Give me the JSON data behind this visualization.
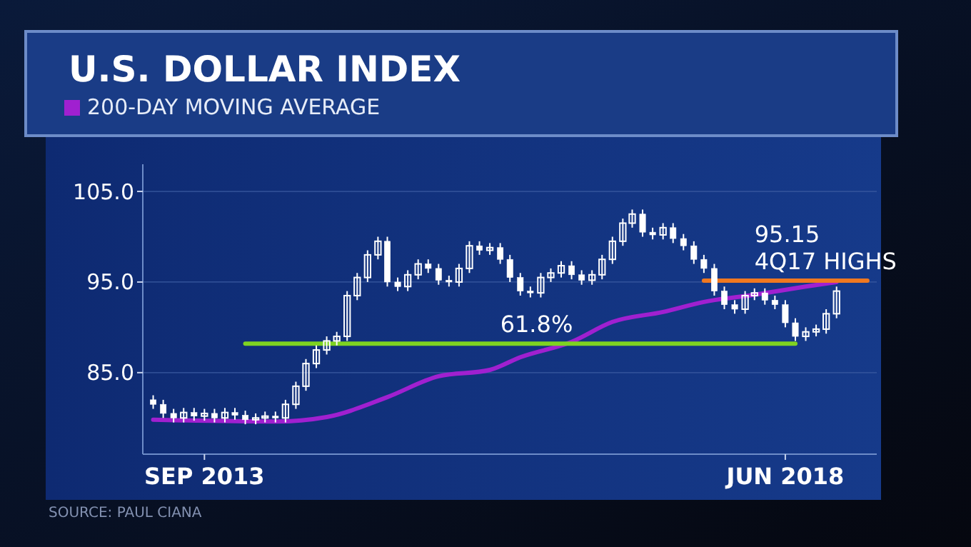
{
  "chart_data": {
    "type": "candlestick",
    "title": "U.S. DOLLAR INDEX",
    "color": "#ffffff",
    "x": [
      "2013-04",
      "2013-05",
      "2013-06",
      "2013-07",
      "2013-08",
      "2013-09",
      "2013-10",
      "2013-11",
      "2013-12",
      "2014-01",
      "2014-02",
      "2014-03",
      "2014-04",
      "2014-05",
      "2014-06",
      "2014-07",
      "2014-08",
      "2014-09",
      "2014-10",
      "2014-11",
      "2014-12",
      "2015-01",
      "2015-02",
      "2015-03",
      "2015-04",
      "2015-05",
      "2015-06",
      "2015-07",
      "2015-08",
      "2015-09",
      "2015-10",
      "2015-11",
      "2015-12",
      "2016-01",
      "2016-02",
      "2016-03",
      "2016-04",
      "2016-05",
      "2016-06",
      "2016-07",
      "2016-08",
      "2016-09",
      "2016-10",
      "2016-11",
      "2016-12",
      "2017-01",
      "2017-02",
      "2017-03",
      "2017-04",
      "2017-05",
      "2017-06",
      "2017-07",
      "2017-08",
      "2017-09",
      "2017-10",
      "2017-11",
      "2017-12",
      "2018-01",
      "2018-02",
      "2018-03",
      "2018-04",
      "2018-05",
      "2018-06",
      "2018-07",
      "2018-08",
      "2018-09",
      "2018-10",
      "2018-11"
    ],
    "ohlc": [
      [
        82.0,
        82.5,
        81.0,
        81.5
      ],
      [
        81.5,
        82.0,
        80.0,
        80.5
      ],
      [
        80.5,
        81.0,
        79.5,
        80.0
      ],
      [
        80.0,
        81.1,
        79.5,
        80.6
      ],
      [
        80.6,
        81.1,
        79.7,
        80.2
      ],
      [
        80.2,
        81.0,
        79.7,
        80.5
      ],
      [
        80.5,
        81.0,
        79.5,
        80.0
      ],
      [
        80.0,
        81.1,
        79.5,
        80.6
      ],
      [
        80.6,
        81.1,
        79.8,
        80.3
      ],
      [
        80.3,
        80.8,
        79.3,
        79.8
      ],
      [
        79.8,
        80.5,
        79.3,
        80.0
      ],
      [
        80.0,
        80.7,
        79.5,
        80.2
      ],
      [
        80.2,
        80.7,
        79.5,
        80.0
      ],
      [
        80.0,
        82.0,
        79.5,
        81.5
      ],
      [
        81.5,
        84.0,
        81.0,
        83.5
      ],
      [
        83.5,
        86.5,
        83.0,
        86.0
      ],
      [
        86.0,
        88.0,
        85.5,
        87.5
      ],
      [
        87.5,
        89.0,
        87.0,
        88.5
      ],
      [
        88.5,
        89.5,
        88.0,
        89.0
      ],
      [
        89.0,
        94.0,
        88.5,
        93.5
      ],
      [
        93.5,
        96.0,
        93.0,
        95.5
      ],
      [
        95.5,
        98.5,
        95.0,
        98.0
      ],
      [
        98.0,
        100.0,
        97.5,
        99.5
      ],
      [
        99.5,
        100.0,
        94.5,
        95.0
      ],
      [
        95.0,
        95.5,
        94.0,
        94.5
      ],
      [
        94.5,
        96.3,
        94.0,
        95.8
      ],
      [
        95.8,
        97.5,
        95.3,
        97.0
      ],
      [
        97.0,
        97.5,
        96.0,
        96.5
      ],
      [
        96.5,
        97.0,
        94.7,
        95.2
      ],
      [
        95.2,
        95.7,
        94.5,
        95.0
      ],
      [
        95.0,
        97.0,
        94.5,
        96.5
      ],
      [
        96.5,
        99.5,
        96.0,
        99.0
      ],
      [
        99.0,
        99.5,
        98.0,
        98.5
      ],
      [
        98.5,
        99.3,
        98.0,
        98.8
      ],
      [
        98.8,
        99.3,
        97.0,
        97.5
      ],
      [
        97.5,
        98.0,
        95.0,
        95.5
      ],
      [
        95.5,
        96.0,
        93.5,
        94.0
      ],
      [
        94.0,
        94.5,
        93.3,
        93.8
      ],
      [
        93.8,
        96.0,
        93.3,
        95.5
      ],
      [
        95.5,
        96.5,
        95.0,
        96.0
      ],
      [
        96.0,
        97.3,
        95.5,
        96.8
      ],
      [
        96.8,
        97.3,
        95.3,
        95.8
      ],
      [
        95.8,
        96.3,
        94.7,
        95.2
      ],
      [
        95.2,
        96.3,
        94.7,
        95.8
      ],
      [
        95.8,
        98.0,
        95.3,
        97.5
      ],
      [
        97.5,
        100.0,
        97.0,
        99.5
      ],
      [
        99.5,
        102.0,
        99.0,
        101.5
      ],
      [
        101.5,
        103.0,
        101.0,
        102.5
      ],
      [
        102.5,
        103.0,
        100.0,
        100.5
      ],
      [
        100.5,
        101.0,
        99.7,
        100.2
      ],
      [
        100.2,
        101.5,
        99.7,
        101.0
      ],
      [
        101.0,
        101.5,
        99.3,
        99.8
      ],
      [
        99.8,
        100.3,
        98.5,
        99.0
      ],
      [
        99.0,
        99.5,
        97.0,
        97.5
      ],
      [
        97.5,
        98.0,
        96.0,
        96.5
      ],
      [
        96.5,
        97.0,
        93.5,
        94.0
      ],
      [
        94.0,
        94.5,
        92.0,
        92.5
      ],
      [
        92.5,
        93.0,
        91.5,
        92.0
      ],
      [
        92.0,
        94.0,
        91.5,
        93.5
      ],
      [
        93.5,
        94.3,
        93.0,
        93.8
      ],
      [
        93.8,
        94.3,
        92.5,
        93.0
      ],
      [
        93.0,
        93.5,
        92.0,
        92.5
      ],
      [
        92.5,
        93.0,
        90.0,
        90.5
      ],
      [
        90.5,
        91.0,
        88.5,
        89.0
      ],
      [
        89.0,
        90.0,
        88.5,
        89.5
      ],
      [
        89.5,
        90.3,
        89.0,
        89.8
      ],
      [
        89.8,
        92.0,
        89.3,
        91.5
      ],
      [
        91.5,
        94.5,
        91.0,
        94.0
      ]
    ],
    "series": [
      {
        "type": "line",
        "name": "200-DAY MOVING AVERAGE",
        "color": "#a020d0",
        "x": [
          "2013-04",
          "2014-04",
          "2014-09",
          "2015-03",
          "2015-08",
          "2016-01",
          "2016-04",
          "2016-09",
          "2017-01",
          "2017-06",
          "2017-10",
          "2018-03",
          "2018-08",
          "2018-11"
        ],
        "values": [
          79.8,
          79.6,
          80.1,
          82.3,
          84.6,
          85.3,
          86.7,
          88.4,
          90.6,
          91.7,
          92.8,
          93.6,
          94.5,
          95.0
        ]
      },
      {
        "type": "line",
        "color": "#7ed321",
        "x": [
          "2014-01",
          "2018-07"
        ],
        "values": [
          88.2,
          88.2
        ]
      },
      {
        "type": "line",
        "color": "#f07820",
        "x": [
          "2017-10",
          "2019-02"
        ],
        "values": [
          95.15,
          95.15
        ]
      }
    ],
    "xlim": [
      "2013-03",
      "2019-03"
    ],
    "xticks": [
      {
        "value": "2013-09",
        "label": "SEP 2013"
      },
      {
        "value": "2018-06",
        "label": "JUN 2018"
      }
    ],
    "ylim": [
      76,
      108
    ],
    "yticks": [
      {
        "value": 85,
        "label": "85.0"
      },
      {
        "value": 95,
        "label": "95.0"
      },
      {
        "value": 105,
        "label": "105.0"
      }
    ],
    "grid": "y",
    "legend": "top left",
    "annotations": [
      {
        "text": "61.8%",
        "x": "2016-02",
        "y": 88.2
      },
      {
        "text": "95.15\n4Q17 HIGHS",
        "x": "2018-03",
        "y": 95.15
      },
      "SOURCE: PAUL CIANA"
    ]
  }
}
